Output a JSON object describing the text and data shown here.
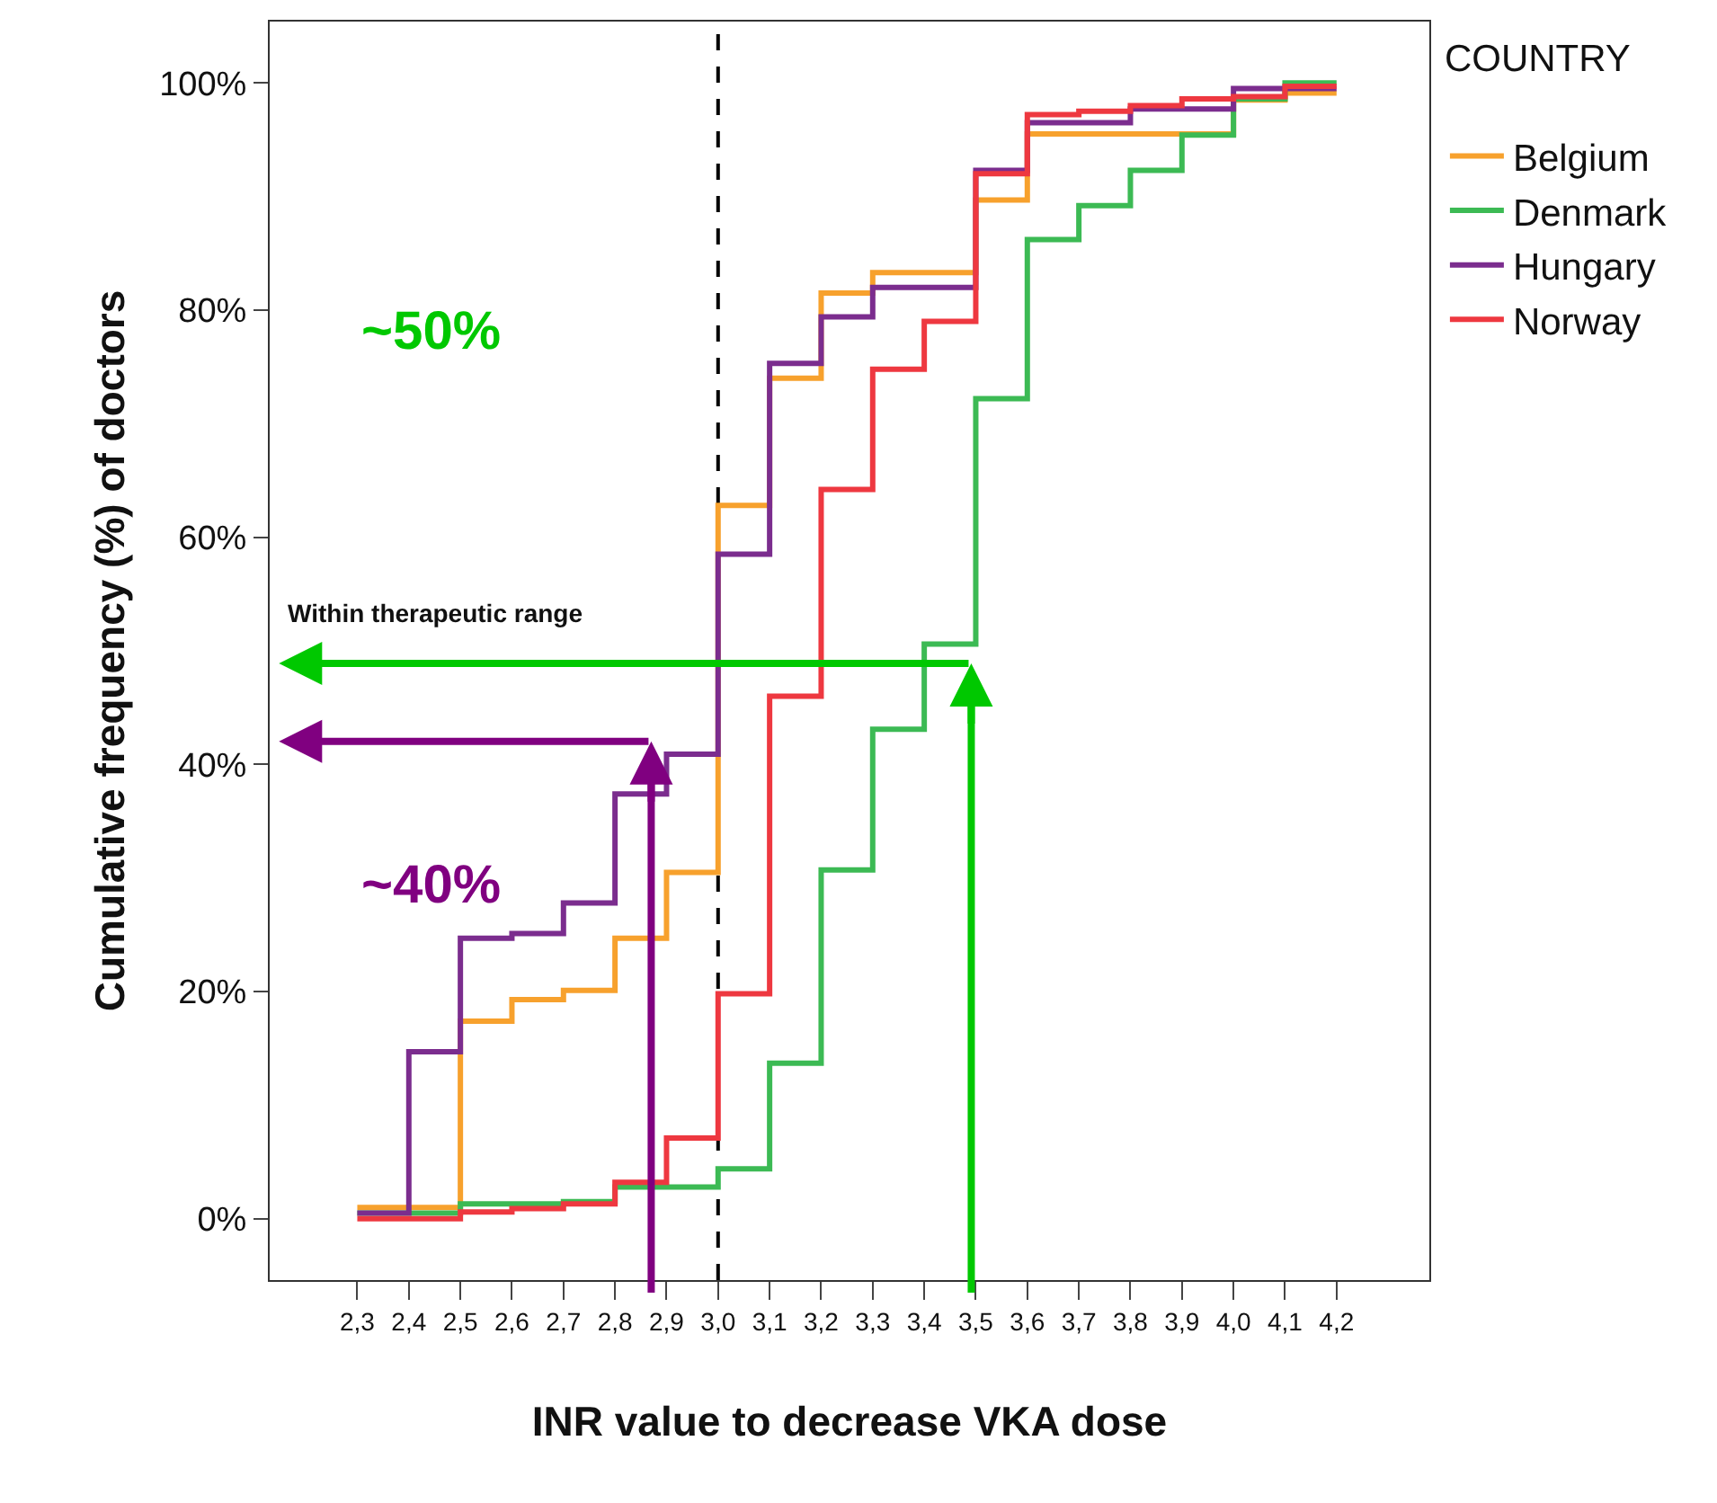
{
  "chart_data": {
    "type": "step",
    "xlabel": "INR value to decrease VKA dose",
    "ylabel": "Cumulative frequency (%) of doctors",
    "legend_title": "COUNTRY",
    "legend": "top right",
    "grid": false,
    "marker": "none",
    "line_style": "solid",
    "x": [
      2.3,
      2.4,
      2.5,
      2.6,
      2.7,
      2.8,
      2.9,
      3.0,
      3.1,
      3.2,
      3.3,
      3.4,
      3.5,
      3.6,
      3.7,
      3.8,
      3.9,
      4.0,
      4.1,
      4.2
    ],
    "series": [
      {
        "name": "Belgium",
        "color": "#f7a12d",
        "values": [
          1,
          1,
          17.4,
          19.3,
          20.1,
          24.7,
          30.5,
          62.8,
          74,
          81.5,
          83.3,
          83.3,
          89.7,
          95.5,
          95.5,
          95.5,
          95.5,
          98.5,
          99.1,
          99.1
        ]
      },
      {
        "name": "Denmark",
        "color": "#3cba54",
        "values": [
          0.5,
          0.5,
          1.3,
          1.3,
          1.5,
          2.8,
          2.8,
          4.4,
          13.7,
          30.7,
          43.1,
          50.6,
          72.2,
          86.2,
          89.2,
          92.3,
          95.4,
          98.6,
          100,
          100
        ]
      },
      {
        "name": "Hungary",
        "color": "#7b2d8e",
        "values": [
          0.5,
          14.7,
          24.7,
          25.1,
          27.8,
          37.4,
          40.9,
          58.5,
          75.3,
          79.4,
          82,
          82,
          92.3,
          96.5,
          96.5,
          97.7,
          97.7,
          99.5,
          99.5,
          99.5
        ]
      },
      {
        "name": "Norway",
        "color": "#ee3840",
        "values": [
          0,
          0,
          0.6,
          0.9,
          1.3,
          3.2,
          7.1,
          19.8,
          46,
          64.2,
          74.8,
          79,
          92,
          97.2,
          97.5,
          98,
          98.6,
          98.8,
          99.7,
          99.7
        ]
      }
    ],
    "xlim": [
      2.13,
      4.38
    ],
    "ylim": [
      -5.4,
      105.4
    ],
    "xticks": [
      {
        "value": 2.3,
        "label": "2,3"
      },
      {
        "value": 2.4,
        "label": "2,4"
      },
      {
        "value": 2.5,
        "label": "2,5"
      },
      {
        "value": 2.6,
        "label": "2,6"
      },
      {
        "value": 2.7,
        "label": "2,7"
      },
      {
        "value": 2.8,
        "label": "2,8"
      },
      {
        "value": 2.9,
        "label": "2,9"
      },
      {
        "value": 3.0,
        "label": "3,0"
      },
      {
        "value": 3.1,
        "label": "3,1"
      },
      {
        "value": 3.2,
        "label": "3,2"
      },
      {
        "value": 3.3,
        "label": "3,3"
      },
      {
        "value": 3.4,
        "label": "3,4"
      },
      {
        "value": 3.5,
        "label": "3,5"
      },
      {
        "value": 3.6,
        "label": "3,6"
      },
      {
        "value": 3.7,
        "label": "3,7"
      },
      {
        "value": 3.8,
        "label": "3,8"
      },
      {
        "value": 3.9,
        "label": "3,9"
      },
      {
        "value": 4.0,
        "label": "4,0"
      },
      {
        "value": 4.1,
        "label": "4,1"
      },
      {
        "value": 4.2,
        "label": "4,2"
      }
    ],
    "yticks": [
      {
        "value": 0,
        "label": "0%"
      },
      {
        "value": 20,
        "label": "20%"
      },
      {
        "value": 40,
        "label": "40%"
      },
      {
        "value": 60,
        "label": "60%"
      },
      {
        "value": 80,
        "label": "80%"
      },
      {
        "value": 100,
        "label": "100%"
      }
    ],
    "ref_lines": [
      {
        "axis": "x",
        "value": 3.0,
        "color": "#000000",
        "line_style": "dashed"
      }
    ],
    "annotations": [
      "~50%",
      "~40%",
      "Within therapeutic range"
    ]
  }
}
